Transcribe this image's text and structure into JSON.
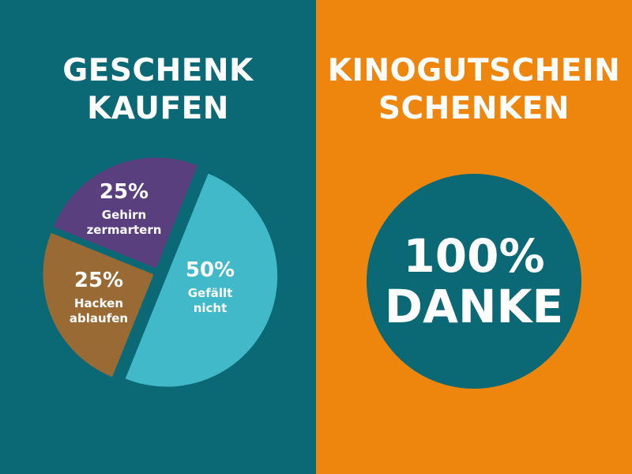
{
  "left": {
    "title_line1": "GESCHENK",
    "title_line2": "KAUFEN"
  },
  "right": {
    "title_line1": "KINOGUTSCHEIN",
    "title_line2": "SCHENKEN",
    "circle_percent": "100%",
    "circle_word": "DANKE"
  },
  "colors": {
    "left_bg": "#0b6875",
    "right_bg": "#ee860d",
    "slice_cyan": "#42b9c8",
    "slice_purple": "#5a3f7e",
    "slice_brown": "#9a6a35"
  },
  "chart_data": {
    "type": "pie",
    "title": "GESCHENK KAUFEN",
    "slices": [
      {
        "percent_label": "50%",
        "label_line1": "Gefällt",
        "label_line2": "nicht",
        "value": 50,
        "color": "#42b9c8"
      },
      {
        "percent_label": "25%",
        "label_line1": "Hacken",
        "label_line2": "ablaufen",
        "value": 25,
        "color": "#9a6a35"
      },
      {
        "percent_label": "25%",
        "label_line1": "Gehirn",
        "label_line2": "zermartern",
        "value": 25,
        "color": "#5a3f7e"
      }
    ]
  }
}
